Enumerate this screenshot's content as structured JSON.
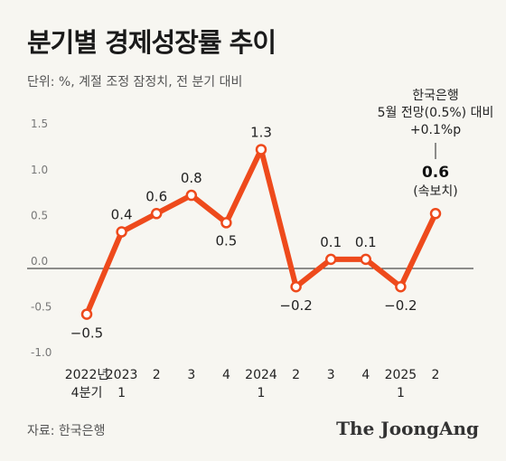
{
  "title": "분기별 경제성장률 추이",
  "subtitle": "단위: %, 계절 조정 잠정치, 전 분기 대비",
  "source": "자료: 한국은행",
  "brand": "The JoongAng",
  "colors": {
    "line": "#ee4a1c",
    "background": "#f7f6f1"
  },
  "chart_data": {
    "type": "line",
    "categories": [
      "2022년\n4분기",
      "2023\n1",
      "2",
      "3",
      "4",
      "2024\n1",
      "2",
      "3",
      "4",
      "2025\n1",
      "2"
    ],
    "values": [
      -0.5,
      0.4,
      0.6,
      0.8,
      0.5,
      1.3,
      -0.2,
      0.1,
      0.1,
      -0.2,
      0.6
    ],
    "data_labels": [
      "−0.5",
      "0.4",
      "0.6",
      "0.8",
      "0.5",
      "1.3",
      "−0.2",
      "0.1",
      "0.1",
      "−0.2",
      "0.6"
    ],
    "yticks": [
      "-1.0",
      "-0.5",
      "0.0",
      "0.5",
      "1.0",
      "1.5"
    ],
    "ytick_values": [
      -1.0,
      -0.5,
      0.0,
      0.5,
      1.0,
      1.5
    ],
    "ylim": [
      -1.0,
      1.5
    ],
    "grid": false,
    "zero_line": true,
    "annotation": {
      "lines": [
        "한국은행",
        "5월 전망(0.5%) 대비",
        "+0.1%p"
      ],
      "value": "0.6",
      "note": "(속보치)"
    }
  }
}
